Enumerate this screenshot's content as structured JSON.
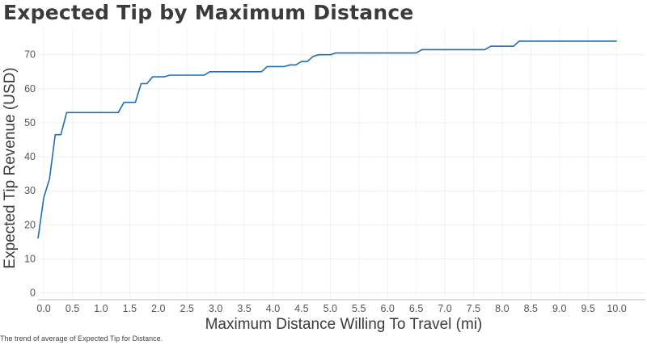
{
  "chart_data": {
    "type": "line",
    "title": "Expected Tip by Maximum Distance",
    "xlabel": "Maximum Distance Willing To Travel (mi)",
    "ylabel": "Expected Tip Revenue (USD)",
    "caption": "The trend of average of Expected Tip for Distance.",
    "xlim": [
      -0.1,
      10.5
    ],
    "ylim": [
      -2,
      78
    ],
    "xticks": [
      "0.0",
      "0.5",
      "1.0",
      "1.5",
      "2.0",
      "2.5",
      "3.0",
      "3.5",
      "4.0",
      "4.5",
      "5.0",
      "5.5",
      "6.0",
      "6.5",
      "7.0",
      "7.5",
      "8.0",
      "8.5",
      "9.0",
      "9.5",
      "10.0"
    ],
    "yticks": [
      "0",
      "10",
      "20",
      "30",
      "40",
      "50",
      "60",
      "70"
    ],
    "grid": true,
    "line_color": "#1f6fb2",
    "series": [
      {
        "name": "",
        "x": [
          -0.1,
          0.0,
          0.1,
          0.2,
          0.3,
          0.4,
          0.5,
          0.6,
          1.3,
          1.4,
          1.6,
          1.7,
          1.8,
          1.9,
          2.1,
          2.2,
          2.8,
          2.9,
          3.8,
          3.9,
          4.2,
          4.3,
          4.4,
          4.5,
          4.6,
          4.7,
          4.8,
          5.0,
          5.1,
          5.2,
          6.5,
          6.6,
          7.7,
          7.8,
          8.1,
          8.2,
          8.3,
          10.0
        ],
        "y": [
          16,
          28,
          33.5,
          46.5,
          46.5,
          53,
          53,
          53,
          53,
          56,
          56,
          61.5,
          61.5,
          63.5,
          63.5,
          64,
          64,
          65,
          65,
          66.5,
          66.5,
          67,
          67,
          68,
          68,
          69.5,
          70,
          70,
          70.5,
          70.5,
          70.5,
          71.5,
          71.5,
          72.5,
          72.5,
          72.5,
          74,
          74
        ]
      }
    ]
  }
}
